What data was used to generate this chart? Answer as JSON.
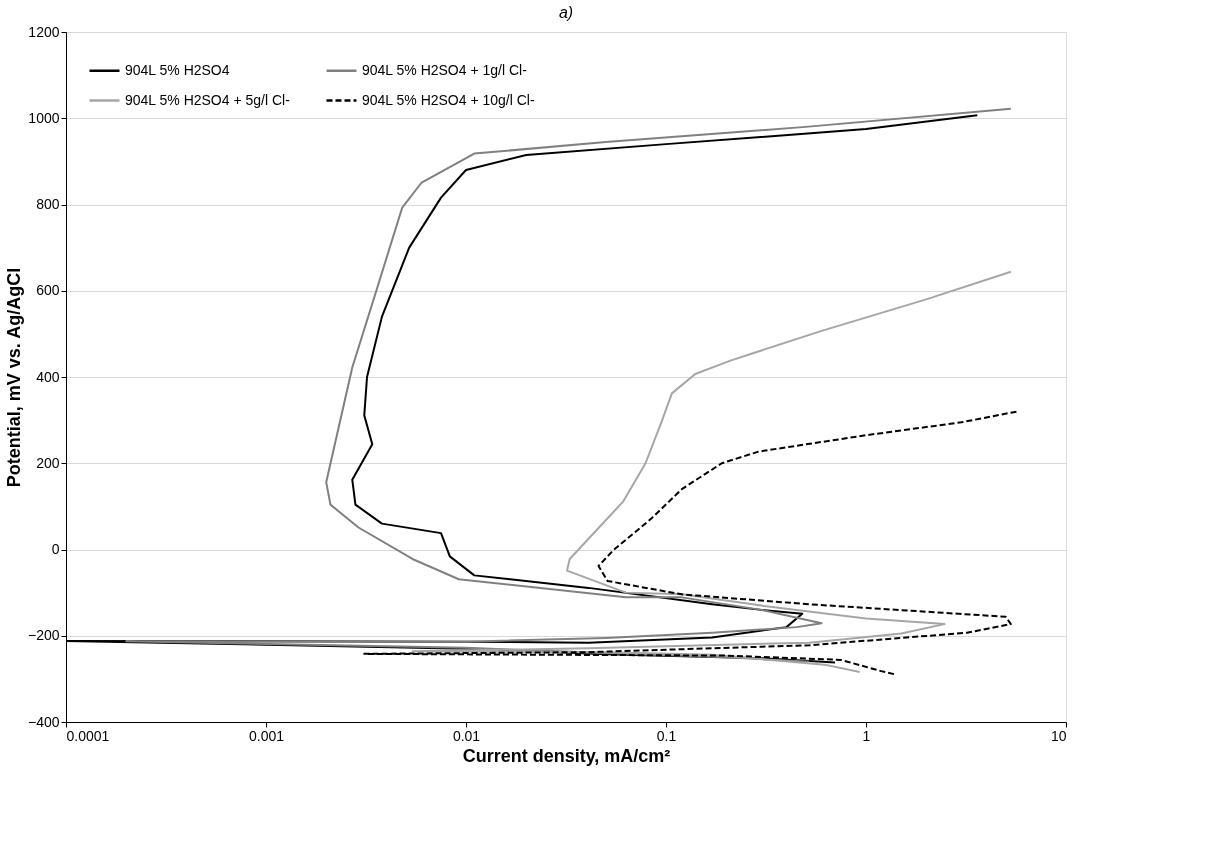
{
  "chart_data": {
    "type": "line",
    "title": "a)",
    "xlabel": "Current density, mA/cm²",
    "ylabel": "Potential, mV vs. Ag/AgCl",
    "log": "x",
    "xlim": [
      0.0001,
      10
    ],
    "xticks": [
      0.0001,
      0.001,
      0.01,
      0.1,
      1,
      10
    ],
    "ylim": [
      -400,
      1200
    ],
    "yticks": [
      -400,
      -200,
      0,
      200,
      400,
      600,
      800,
      1000,
      1200
    ],
    "grid": "y",
    "legend": "top left",
    "series": [
      {
        "name": "904L 5% H2SO4",
        "color": "#000000",
        "line_style": "solid",
        "x": [
          0.7,
          0.3,
          0.05,
          0.01,
          0.0001,
          0.01,
          0.041,
          0.17,
          0.4,
          0.48,
          0.3,
          0.17,
          0.041,
          0.011,
          0.0083,
          0.0075,
          0.0038,
          0.0028,
          0.0027,
          0.0034,
          0.0031,
          0.0032,
          0.0038,
          0.0052,
          0.0075,
          0.01,
          0.02,
          0.1,
          1,
          3.6
        ],
        "values": [
          -262,
          -252,
          -243,
          -230,
          -212,
          -214,
          -216,
          -204,
          -180,
          -149,
          -140,
          -127,
          -89,
          -60,
          -16,
          38,
          60,
          104,
          162,
          244,
          311,
          400,
          540,
          700,
          816,
          880,
          915,
          940,
          975,
          1007
        ]
      },
      {
        "name": "904L 5% H2SO4 + 1g/l Cl-",
        "color": "#808080",
        "line_style": "solid",
        "x": [
          0.52,
          0.2,
          0.05,
          0.01,
          0.0002,
          0.01,
          0.05,
          0.17,
          0.45,
          0.6,
          0.3,
          0.12,
          0.063,
          0.0092,
          0.0054,
          0.0029,
          0.0021,
          0.002,
          0.0027,
          0.0036,
          0.0048,
          0.006,
          0.011,
          0.05,
          0.5,
          5.3
        ],
        "values": [
          -260,
          -250,
          -240,
          -228,
          -213,
          -214,
          -205,
          -193,
          -180,
          -171,
          -140,
          -111,
          -111,
          -69,
          -22,
          51,
          104,
          156,
          422,
          607,
          793,
          851,
          918,
          945,
          980,
          1022
        ]
      },
      {
        "name": "904L 5% H2SO4 + 5g/l Cl-",
        "color": "#a6a6a6",
        "line_style": "solid",
        "x": [
          0.93,
          0.62,
          0.17,
          0.05,
          0.0054,
          0.041,
          0.52,
          1.5,
          2.47,
          1.0,
          0.3,
          0.12,
          0.063,
          0.032,
          0.033,
          0.061,
          0.079,
          0.095,
          0.107,
          0.14,
          0.21,
          0.6,
          2,
          5.3
        ],
        "values": [
          -284,
          -267,
          -244,
          -238,
          -236,
          -229,
          -216,
          -195,
          -173,
          -160,
          -130,
          -104,
          -100,
          -49,
          -22,
          111,
          200,
          296,
          362,
          407,
          438,
          507,
          580,
          644
        ]
      },
      {
        "name": "904L 5% H2SO4 + 10g/l Cl-",
        "color": "#000000",
        "line_style": "dashed",
        "x": [
          1.38,
          1.19,
          0.75,
          0.2,
          0.0031,
          0.041,
          0.52,
          3.2,
          5.3,
          5.0,
          0.52,
          0.12,
          0.051,
          0.046,
          0.055,
          0.07,
          0.085,
          0.12,
          0.19,
          0.29,
          1,
          3,
          5.7
        ],
        "values": [
          -289,
          -282,
          -256,
          -246,
          -242,
          -238,
          -222,
          -193,
          -173,
          -156,
          -127,
          -104,
          -73,
          -38,
          0,
          40,
          73,
          140,
          200,
          227,
          265,
          295,
          320
        ]
      }
    ]
  }
}
